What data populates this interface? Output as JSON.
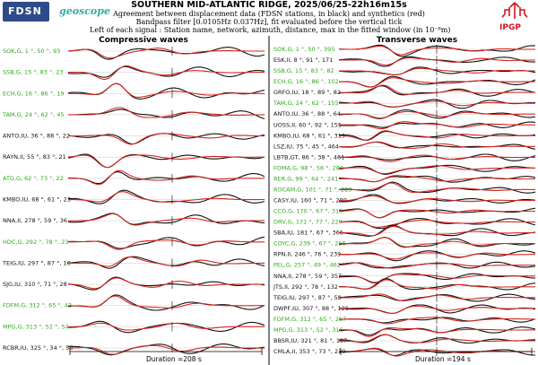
{
  "header": {
    "logo_left": "FDSN",
    "logo_mid": "geoscope",
    "logo_right": "IPGP",
    "title": "SOUTHERN MID-ATLANTIC RIDGE, 2025/06/25-22h16m15s",
    "line1": "Agreement between displacement data (FDSN stations, in black) and synthetics (red)",
    "line2": "Bandpass filter [0.0105Hz 0.037Hz], fit evaluated before the vertical tick",
    "line3": "Left of each signal : Station name, network, azimuth, distance, max in the fitted window (in 10⁻⁸m)"
  },
  "colors": {
    "data": "#111111",
    "synthetic": "#d7261e",
    "green_label": "#2ea81a",
    "black_label": "#111111"
  },
  "chart_data": [
    {
      "type": "line",
      "title": "Compressive waves",
      "series": [
        {
          "name": "data",
          "color": "#111111"
        },
        {
          "name": "synthetics",
          "color": "#d7261e"
        }
      ],
      "duration_label": "Duration =208 s",
      "duration_s": 208,
      "stations": [
        {
          "label": "SOK,G, 1 °, 50 °, 93",
          "net_color": "green"
        },
        {
          "label": "SSB,G, 15 °, 83 °, 23",
          "net_color": "green"
        },
        {
          "label": "ECH,G, 16 °, 86 °, 19",
          "net_color": "green"
        },
        {
          "label": "TAM,G, 24 °, 62 °, 45",
          "net_color": "green"
        },
        {
          "label": "ANTO,IU, 36 °, 88 °, 22",
          "net_color": "black"
        },
        {
          "label": "RAYN,II, 55 °, 83 °, 21",
          "net_color": "black"
        },
        {
          "label": "ATD,G, 62 °, 73 °, 22",
          "net_color": "green"
        },
        {
          "label": "KMBO,IU, 68 °, 61 °, 23",
          "net_color": "black"
        },
        {
          "label": "NNA,II, 278 °, 59 °, 36",
          "net_color": "black"
        },
        {
          "label": "HDC,G, 292 °, 78 °, 23",
          "net_color": "green"
        },
        {
          "label": "TEIG,IU, 297 °, 87 °, 16",
          "net_color": "black"
        },
        {
          "label": "SJG,IU, 310 °, 71 °, 28",
          "net_color": "black"
        },
        {
          "label": "FDFM,G, 312 °, 65 °, 42",
          "net_color": "green"
        },
        {
          "label": "MPG,G, 313 °, 52 °, 54",
          "net_color": "green"
        },
        {
          "label": "RCBR,IU, 325 °, 34 °, 58",
          "net_color": "black"
        }
      ]
    },
    {
      "type": "line",
      "title": "Transverse waves",
      "series": [
        {
          "name": "data",
          "color": "#111111"
        },
        {
          "name": "synthetics",
          "color": "#d7261e"
        }
      ],
      "duration_label": "Duration =194 s",
      "duration_s": 194,
      "stations": [
        {
          "label": "SOK,G, 1 °, 50 °, 395",
          "net_color": "green"
        },
        {
          "label": "ESK,II, 8 °, 91 °, 171",
          "net_color": "black"
        },
        {
          "label": "SSB,G, 15 °, 83 °, 82",
          "net_color": "green"
        },
        {
          "label": "ECH,G, 16 °, 86 °, 102",
          "net_color": "green"
        },
        {
          "label": "GRFO,IU, 18 °, 89 °, 82",
          "net_color": "black"
        },
        {
          "label": "TAM,G, 24 °, 62 °, 155",
          "net_color": "green"
        },
        {
          "label": "ANTO,IU, 36 °, 88 °, 64",
          "net_color": "black"
        },
        {
          "label": "UOSS,II, 60 °, 92 °, 155",
          "net_color": "black"
        },
        {
          "label": "KMBO,IU, 68 °, 61 °, 319",
          "net_color": "black"
        },
        {
          "label": "LSZ,IU, 75 °, 45 °, 464",
          "net_color": "black"
        },
        {
          "label": "LBTB,GT, 86 °, 38 °, 461",
          "net_color": "black"
        },
        {
          "label": "FOMA,G, 98 °, 56 °, 280",
          "net_color": "green"
        },
        {
          "label": "RER,G, 99 °, 64 °, 241",
          "net_color": "green"
        },
        {
          "label": "ROCAM,G, 101 °, 71 °, 223",
          "net_color": "green"
        },
        {
          "label": "CASY,IU, 160 °, 71 °, 280",
          "net_color": "black"
        },
        {
          "label": "CCD,G, 170 °, 67 °, 315",
          "net_color": "green"
        },
        {
          "label": "DRV,G, 171 °, 77 °, 229",
          "net_color": "green"
        },
        {
          "label": "SBA,IU, 181 °, 67 °, 366",
          "net_color": "black"
        },
        {
          "label": "COYC,G, 239 °, 67 °, 296",
          "net_color": "green"
        },
        {
          "label": "RPN,II, 246 °, 76 °, 239",
          "net_color": "black"
        },
        {
          "label": "PEL,G, 257 °, 49 °, 462",
          "net_color": "green"
        },
        {
          "label": "NNA,II, 278 °, 59 °, 357",
          "net_color": "black"
        },
        {
          "label": "JTS,II, 292 °, 78 °, 132",
          "net_color": "black"
        },
        {
          "label": "TEIG,IU, 297 °, 87 °, 58",
          "net_color": "black"
        },
        {
          "label": "DWPF,IU, 307 °, 88 °, 126",
          "net_color": "black"
        },
        {
          "label": "FDFM,G, 312 °, 65 °, 257",
          "net_color": "green"
        },
        {
          "label": "MPG,G, 313 °, 52 °, 316",
          "net_color": "green"
        },
        {
          "label": "BBSR,IU, 321 °, 81 °, 187",
          "net_color": "black"
        },
        {
          "label": "CMLA,II, 353 °, 73 °, 230",
          "net_color": "black"
        }
      ]
    }
  ]
}
